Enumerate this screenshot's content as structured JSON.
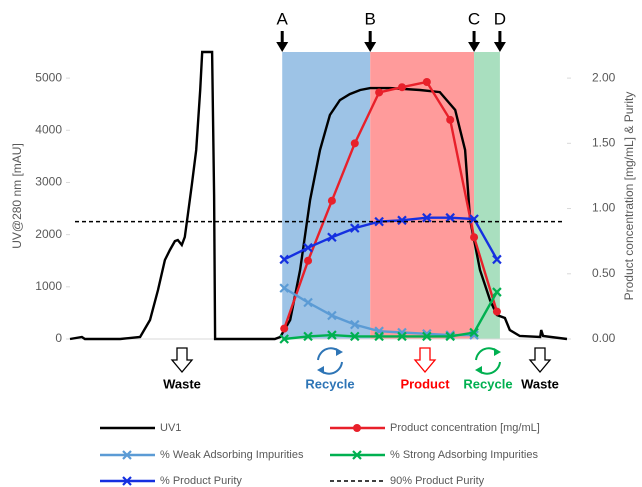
{
  "chart_data": {
    "type": "line",
    "y_label": "UV@280 nm [mAU]",
    "y2_label": "Product concentration [mg/mL]  & Purity",
    "xlim": [
      0,
      100
    ],
    "ylim": [
      0,
      5500
    ],
    "yticks": [
      0,
      1000,
      2000,
      3000,
      4000,
      5000
    ],
    "y2lim": [
      0,
      2.2
    ],
    "y2ticks": [
      {
        "value": 0,
        "label": "0.00"
      },
      {
        "value": 0.5,
        "label": "0.50"
      },
      {
        "value": 1,
        "label": "1.00"
      },
      {
        "value": 1.5,
        "label": "1.50"
      },
      {
        "value": 2,
        "label": "2.00"
      }
    ],
    "boundaries": [
      {
        "label": "A",
        "x": 42.7
      },
      {
        "label": "B",
        "x": 60.4
      },
      {
        "label": "C",
        "x": 81.3
      },
      {
        "label": "D",
        "x": 86.5
      }
    ],
    "region_colors": [
      "#9dc3e6",
      "#ff9b9b",
      "#a9dfbf"
    ],
    "annotations": [
      "Waste",
      "Recycle",
      "Product",
      "Recycle",
      "Waste"
    ],
    "annotation_colors": [
      "#000000",
      "#2e75b6",
      "#ff0000",
      "#00b050",
      "#000000"
    ],
    "series": [
      {
        "name": "UV1",
        "color": "#000000",
        "axis": "y",
        "marker": "none",
        "style": "solid",
        "x": [
          0,
          2.4,
          3.0,
          10.1,
          14.1,
          16.1,
          17.7,
          19.1,
          20.1,
          21.1,
          21.7,
          22.5,
          23.1,
          23.7,
          24.5,
          25.4,
          26.2,
          26.6,
          28.6,
          29.0,
          29.2,
          41.2,
          42.3,
          44.3,
          46.3,
          48.3,
          50.3,
          52.3,
          54.3,
          56.3,
          58.4,
          60.4,
          64.4,
          70.4,
          74.4,
          77.5,
          79.5,
          80.5,
          81.3,
          82.5,
          84.5,
          85.9,
          87.5,
          88.5,
          90.5,
          94.6,
          94.8,
          95.2,
          100
        ],
        "values": [
          0,
          38,
          0,
          0,
          38,
          364,
          939,
          1513,
          1705,
          1877,
          1897,
          1801,
          1954,
          2376,
          2951,
          3621,
          4771,
          5500,
          5500,
          2759,
          0,
          0,
          38,
          364,
          1322,
          2663,
          3621,
          4292,
          4579,
          4694,
          4771,
          4809,
          4809,
          4771,
          4732,
          4388,
          3621,
          2280,
          1897,
          1322,
          747,
          460,
          402,
          172,
          57,
          38,
          172,
          57,
          0
        ]
      },
      {
        "name": "Product concentration [mg/mL]",
        "color": "#e8202a",
        "axis": "y2",
        "marker": "circle",
        "style": "solid",
        "x": [
          43.1,
          47.9,
          52.7,
          57.3,
          62.2,
          66.8,
          71.8,
          76.5,
          81.3,
          85.9
        ],
        "values": [
          0.08,
          0.6,
          1.06,
          1.5,
          1.89,
          1.93,
          1.97,
          1.68,
          0.78,
          0.21
        ]
      },
      {
        "name": "% Weak Adsorbing Impurities",
        "color": "#5b9bd5",
        "axis": "y2",
        "marker": "x",
        "style": "solid",
        "x": [
          43.1,
          47.9,
          52.7,
          57.3,
          62.2,
          66.8,
          71.8,
          76.5,
          81.3
        ],
        "values": [
          0.39,
          0.28,
          0.18,
          0.11,
          0.06,
          0.05,
          0.04,
          0.03,
          0.03
        ]
      },
      {
        "name": "% Strong Adsorbing Impurities",
        "color": "#00b050",
        "axis": "y2",
        "marker": "x",
        "style": "solid",
        "x": [
          43.1,
          47.9,
          52.7,
          57.3,
          62.2,
          66.8,
          71.8,
          76.5,
          81.3,
          85.9
        ],
        "values": [
          0,
          0.02,
          0.03,
          0.02,
          0.02,
          0.02,
          0.02,
          0.02,
          0.05,
          0.36
        ]
      },
      {
        "name": "% Product Purity",
        "color": "#1530e0",
        "axis": "y2",
        "marker": "x",
        "style": "solid",
        "x": [
          43.1,
          47.9,
          52.7,
          57.3,
          62.2,
          66.8,
          71.8,
          76.5,
          81.3,
          85.9
        ],
        "values": [
          0.61,
          0.7,
          0.78,
          0.85,
          0.9,
          0.91,
          0.93,
          0.93,
          0.92,
          0.61
        ]
      },
      {
        "name": "90% Product Purity",
        "color": "#000000",
        "axis": "y2",
        "marker": "none",
        "style": "dashed",
        "x": [
          1,
          99
        ],
        "values": [
          0.9,
          0.9
        ]
      }
    ]
  }
}
